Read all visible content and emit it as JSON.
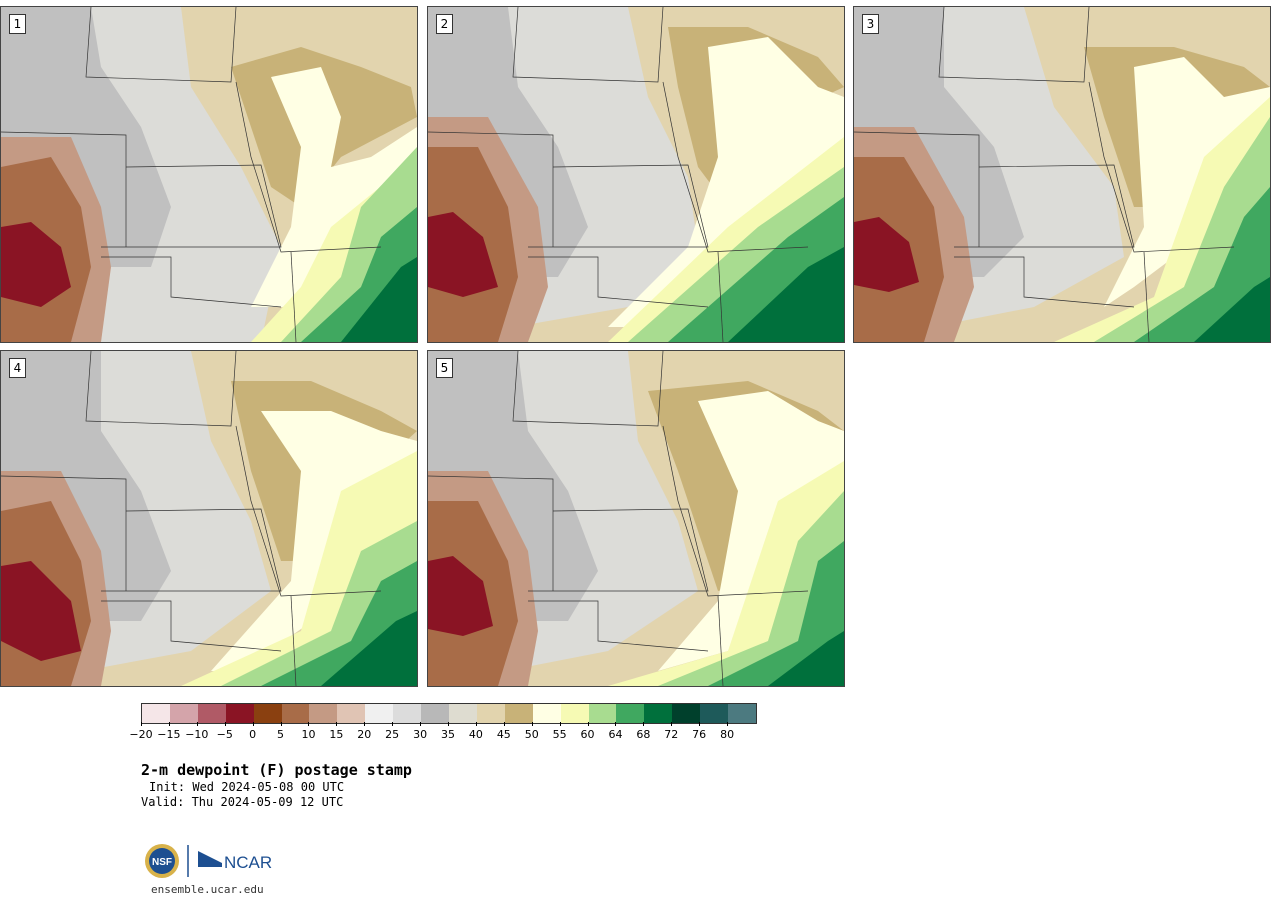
{
  "panels": [
    {
      "label": "1"
    },
    {
      "label": "2"
    },
    {
      "label": "3"
    },
    {
      "label": "4"
    },
    {
      "label": "5"
    }
  ],
  "colorbar": {
    "colors": [
      "#f5e6e8",
      "#d4a4aa",
      "#b05a66",
      "#8a1424",
      "#8a4010",
      "#a86c48",
      "#c49a84",
      "#e0c4b4",
      "#f0f0f0",
      "#dcdcdc",
      "#b8b8b8",
      "#dedcd0",
      "#e2d4ae",
      "#c8b278",
      "#ffffe4",
      "#f6fab4",
      "#a8dc90",
      "#40a860",
      "#00703c",
      "#00402c",
      "#1e5a5a",
      "#4c7a80"
    ],
    "ticks": [
      "−20",
      "−15",
      "−10",
      "−5",
      "0",
      "5",
      "10",
      "15",
      "20",
      "25",
      "30",
      "35",
      "40",
      "45",
      "50",
      "55",
      "60",
      "64",
      "68",
      "72",
      "76",
      "80"
    ]
  },
  "title": "2-m dewpoint (F) postage stamp",
  "init": "Init: Wed 2024-05-08 00 UTC",
  "valid": "Valid: Thu 2024-05-09 12 UTC",
  "logos": {
    "nsf": "NSF",
    "ncar": "NCAR"
  },
  "footer_url": "ensemble.ucar.edu",
  "palette": {
    "gray_light": "#e6e6e0",
    "gray_mid": "#c0c0c0",
    "tan_light": "#e2d4ae",
    "tan_dark": "#c8b278",
    "yellow_pale": "#ffffe4",
    "yellow": "#f6fab4",
    "green_light": "#a8dc90",
    "green": "#40a860",
    "green_dark": "#00703c",
    "brown": "#a86c48",
    "brown_light": "#c49a84",
    "red": "#8a1424"
  }
}
